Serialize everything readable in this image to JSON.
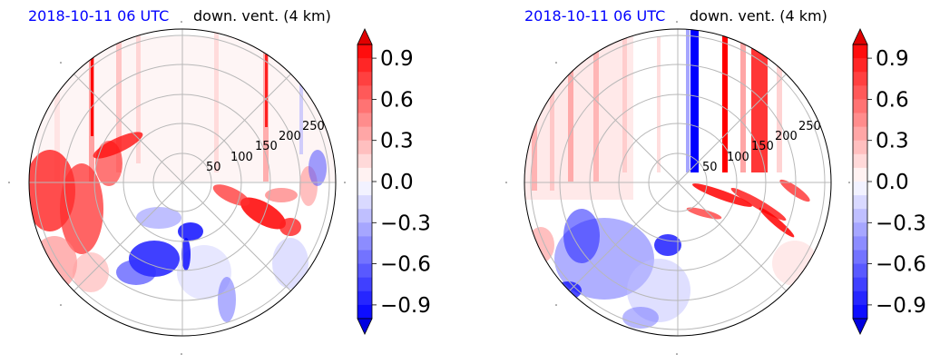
{
  "chart_data": [
    {
      "type": "heatmap",
      "projection": "polar",
      "title_left": "2018-10-11 06 UTC",
      "title_right": "down. vent. (4 km)",
      "radial_ticks": [
        50,
        100,
        150,
        200,
        250
      ],
      "colorbar": {
        "ticks": [
          0.9,
          0.6,
          0.3,
          0.0,
          -0.3,
          -0.6,
          -0.9
        ],
        "tick_labels": [
          "0.9",
          "0.6",
          "0.3",
          "0.0",
          "−0.3",
          "−0.6",
          "−0.9"
        ],
        "range": [
          -1.0,
          1.0
        ],
        "extend": "both",
        "colormap": "bwr"
      },
      "grid": true
    },
    {
      "type": "heatmap",
      "projection": "polar",
      "title_left": "2018-10-11 06 UTC",
      "title_right": "down. vent. (4 km)",
      "radial_ticks": [
        50,
        100,
        150,
        200,
        250
      ],
      "colorbar": {
        "ticks": [
          0.9,
          0.6,
          0.3,
          0.0,
          -0.3,
          -0.6,
          -0.9
        ],
        "tick_labels": [
          "0.9",
          "0.6",
          "0.3",
          "0.0",
          "−0.3",
          "−0.6",
          "−0.9"
        ],
        "range": [
          -1.0,
          1.0
        ],
        "extend": "both",
        "colormap": "bwr"
      },
      "grid": true
    }
  ],
  "colors": {
    "positive": "#ff0000",
    "negative": "#0000ff",
    "neutral": "#ffffff",
    "title_date": "#0000ff"
  }
}
